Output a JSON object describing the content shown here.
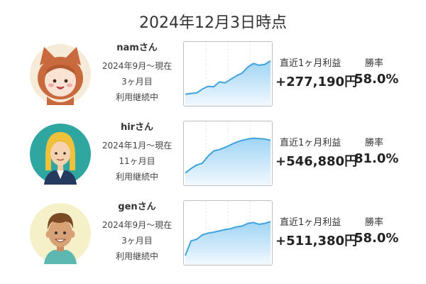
{
  "title": "2024年12月3日時点",
  "labels": {
    "profit": "直近1ヶ月利益",
    "win_rate": "勝率"
  },
  "colors": {
    "line": "#3fa2dd",
    "fill_top": "#9fd4f5",
    "fill_bottom": "#f2f9fe",
    "grid": "#d0d0d0"
  },
  "users": [
    {
      "name": "namさん",
      "avatar_icon": "cat-hood-girl-avatar",
      "period": "2024年9月〜現在",
      "months": "3ヶ月目",
      "status": "利用継続中",
      "profit": "+277,190円",
      "win_rate": "58.0%",
      "trend": [
        0.1,
        0.12,
        0.13,
        0.22,
        0.28,
        0.27,
        0.38,
        0.36,
        0.44,
        0.52,
        0.58,
        0.72,
        0.8,
        0.76,
        0.78,
        0.86
      ]
    },
    {
      "name": "hirさん",
      "avatar_icon": "blonde-woman-avatar",
      "period": "2024年1月〜現在",
      "months": "11ヶ月目",
      "status": "利用継続中",
      "profit": "+546,880円",
      "win_rate": "81.0%",
      "trend": [
        0.12,
        0.22,
        0.3,
        0.34,
        0.5,
        0.62,
        0.65,
        0.7,
        0.76,
        0.82,
        0.86,
        0.89,
        0.91,
        0.9,
        0.89,
        0.86
      ]
    },
    {
      "name": "genさん",
      "avatar_icon": "brown-hair-man-avatar",
      "period": "2024年9月〜現在",
      "months": "3ヶ月目",
      "status": "利用継続中",
      "profit": "+511,380円",
      "win_rate": "58.0%",
      "trend": [
        0.05,
        0.38,
        0.42,
        0.52,
        0.56,
        0.58,
        0.61,
        0.64,
        0.66,
        0.7,
        0.72,
        0.78,
        0.8,
        0.76,
        0.78,
        0.82
      ]
    }
  ]
}
